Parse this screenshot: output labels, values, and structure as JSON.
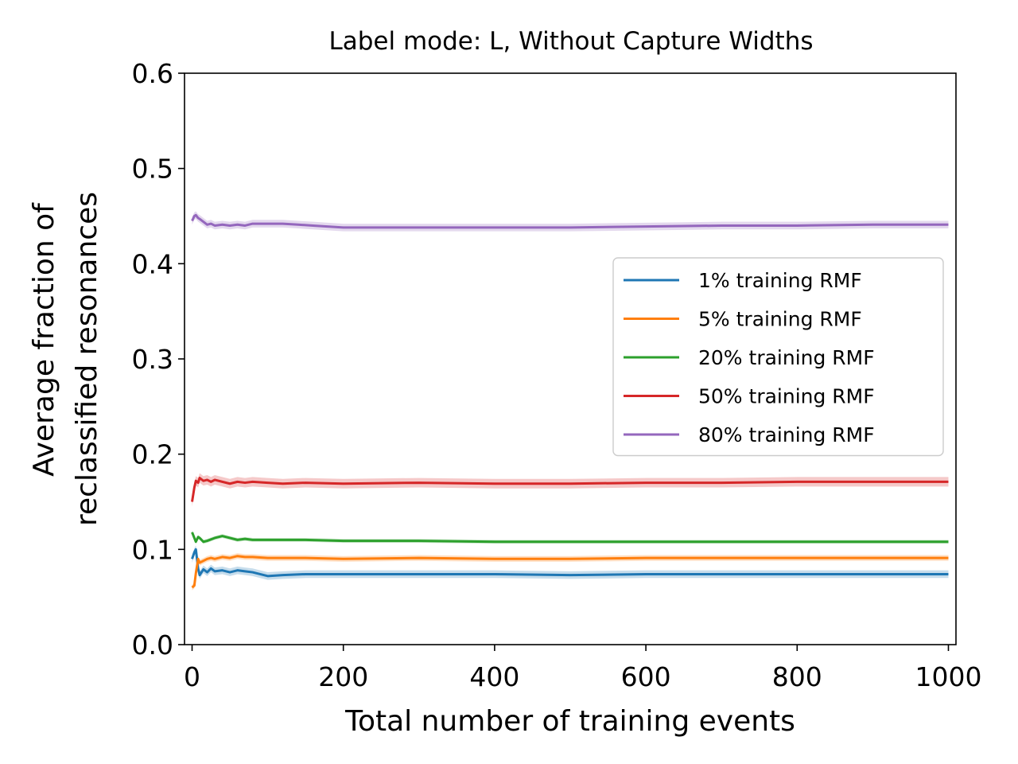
{
  "chart_data": {
    "type": "line",
    "title": "Label mode: L, Without Capture Widths",
    "xlabel": "Total number of training events",
    "ylabel_lines": [
      "Average fraction of",
      "reclassified resonances"
    ],
    "xlim": [
      -10,
      1010
    ],
    "ylim": [
      0,
      0.6
    ],
    "xticks": [
      0,
      200,
      400,
      600,
      800,
      1000
    ],
    "xtick_labels": [
      "0",
      "200",
      "400",
      "600",
      "800",
      "1000"
    ],
    "yticks": [
      0,
      0.1,
      0.2,
      0.3,
      0.4,
      0.5,
      0.6
    ],
    "ytick_labels": [
      "0.0",
      "0.1",
      "0.2",
      "0.3",
      "0.4",
      "0.5",
      "0.6"
    ],
    "grid": false,
    "legend_position": "center-right",
    "series": [
      {
        "name": "1% training RMF",
        "color": "#1f77b4",
        "x": [
          0,
          3,
          5,
          8,
          10,
          15,
          20,
          25,
          30,
          40,
          50,
          60,
          70,
          80,
          100,
          120,
          150,
          200,
          250,
          300,
          400,
          500,
          600,
          700,
          800,
          900,
          1000
        ],
        "y": [
          0.09,
          0.097,
          0.1,
          0.08,
          0.073,
          0.079,
          0.076,
          0.08,
          0.077,
          0.078,
          0.076,
          0.078,
          0.077,
          0.076,
          0.072,
          0.073,
          0.074,
          0.074,
          0.074,
          0.074,
          0.074,
          0.073,
          0.074,
          0.074,
          0.074,
          0.074,
          0.074
        ],
        "band": 0.004
      },
      {
        "name": "5% training RMF",
        "color": "#ff7f0e",
        "x": [
          0,
          3,
          5,
          8,
          10,
          15,
          20,
          25,
          30,
          40,
          50,
          60,
          70,
          80,
          100,
          150,
          200,
          300,
          400,
          500,
          600,
          700,
          800,
          900,
          1000
        ],
        "y": [
          0.06,
          0.062,
          0.075,
          0.09,
          0.086,
          0.088,
          0.09,
          0.091,
          0.09,
          0.092,
          0.091,
          0.093,
          0.092,
          0.092,
          0.091,
          0.091,
          0.09,
          0.091,
          0.09,
          0.09,
          0.091,
          0.091,
          0.091,
          0.091,
          0.091
        ],
        "band": 0.003
      },
      {
        "name": "20% training RMF",
        "color": "#2ca02c",
        "x": [
          0,
          3,
          5,
          8,
          10,
          15,
          20,
          30,
          40,
          50,
          60,
          70,
          80,
          100,
          150,
          200,
          300,
          400,
          500,
          600,
          700,
          800,
          900,
          1000
        ],
        "y": [
          0.118,
          0.112,
          0.108,
          0.113,
          0.112,
          0.108,
          0.109,
          0.112,
          0.114,
          0.112,
          0.11,
          0.111,
          0.11,
          0.11,
          0.11,
          0.109,
          0.109,
          0.108,
          0.108,
          0.108,
          0.108,
          0.108,
          0.108,
          0.108
        ],
        "band": 0.002
      },
      {
        "name": "50% training RMF",
        "color": "#d62728",
        "x": [
          0,
          3,
          5,
          8,
          10,
          15,
          20,
          25,
          30,
          40,
          50,
          60,
          70,
          80,
          100,
          120,
          150,
          200,
          300,
          400,
          500,
          600,
          700,
          800,
          900,
          1000
        ],
        "y": [
          0.15,
          0.165,
          0.172,
          0.17,
          0.175,
          0.172,
          0.173,
          0.171,
          0.173,
          0.171,
          0.169,
          0.171,
          0.17,
          0.171,
          0.17,
          0.169,
          0.17,
          0.169,
          0.17,
          0.169,
          0.169,
          0.17,
          0.17,
          0.171,
          0.171,
          0.171
        ],
        "band": 0.005
      },
      {
        "name": "80% training RMF",
        "color": "#9467bd",
        "x": [
          0,
          3,
          5,
          8,
          10,
          15,
          20,
          25,
          30,
          40,
          50,
          60,
          70,
          80,
          100,
          120,
          140,
          160,
          200,
          250,
          300,
          400,
          500,
          600,
          700,
          800,
          900,
          1000
        ],
        "y": [
          0.445,
          0.45,
          0.451,
          0.448,
          0.447,
          0.444,
          0.441,
          0.442,
          0.44,
          0.441,
          0.44,
          0.441,
          0.44,
          0.442,
          0.442,
          0.442,
          0.441,
          0.44,
          0.438,
          0.438,
          0.438,
          0.438,
          0.438,
          0.439,
          0.44,
          0.44,
          0.441,
          0.441
        ],
        "band": 0.004
      }
    ]
  }
}
